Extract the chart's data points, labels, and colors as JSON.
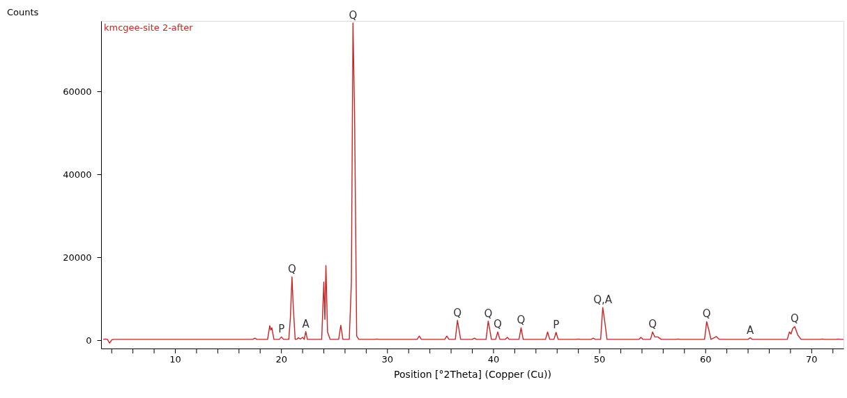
{
  "chart_data": {
    "type": "line",
    "xlabel": "Position [°2Theta] (Copper (Cu))",
    "ylabel": "Counts",
    "xlim": [
      3,
      73
    ],
    "ylim": [
      -2000,
      77000
    ],
    "xticks": [
      {
        "value": 4,
        "label": null
      },
      {
        "value": 6,
        "label": null
      },
      {
        "value": 8,
        "label": null
      },
      10,
      {
        "value": 12,
        "label": null
      },
      {
        "value": 14,
        "label": null
      },
      {
        "value": 16,
        "label": null
      },
      {
        "value": 18,
        "label": null
      },
      20,
      {
        "value": 22,
        "label": null
      },
      {
        "value": 24,
        "label": null
      },
      {
        "value": 26,
        "label": null
      },
      {
        "value": 28,
        "label": null
      },
      30,
      {
        "value": 32,
        "label": null
      },
      {
        "value": 34,
        "label": null
      },
      {
        "value": 36,
        "label": null
      },
      {
        "value": 38,
        "label": null
      },
      40,
      {
        "value": 42,
        "label": null
      },
      {
        "value": 44,
        "label": null
      },
      {
        "value": 46,
        "label": null
      },
      {
        "value": 48,
        "label": null
      },
      50,
      {
        "value": 52,
        "label": null
      },
      {
        "value": 54,
        "label": null
      },
      {
        "value": 56,
        "label": null
      },
      {
        "value": 58,
        "label": null
      },
      60,
      {
        "value": 62,
        "label": null
      },
      {
        "value": 64,
        "label": null
      },
      {
        "value": 66,
        "label": null
      },
      {
        "value": 68,
        "label": null
      },
      70,
      {
        "value": 72,
        "label": null
      }
    ],
    "yticks": [
      0,
      20000,
      40000,
      60000
    ],
    "grid": false,
    "marker": "none",
    "line_style": "solid",
    "series": [
      {
        "name": "kmcgee-site 2-after",
        "color": "#cc2222",
        "x": [
          3.2,
          3.4,
          3.6,
          3.8,
          4.0,
          4.2,
          4.5,
          17.3,
          17.5,
          17.7,
          18.7,
          18.9,
          19.0,
          19.1,
          19.3,
          19.8,
          20.0,
          20.2,
          20.7,
          20.85,
          21.0,
          21.1,
          21.3,
          21.5,
          21.6,
          21.8,
          22.0,
          22.15,
          22.3,
          22.45,
          22.6,
          23.8,
          24.0,
          24.1,
          24.2,
          24.35,
          24.6,
          25.4,
          25.6,
          25.8,
          26.4,
          26.6,
          26.75,
          26.9,
          27.1,
          27.3,
          28.8,
          29.0,
          29.2,
          32.8,
          33.0,
          33.2,
          35.4,
          35.6,
          35.8,
          36.4,
          36.6,
          36.75,
          36.9,
          38.0,
          38.2,
          38.4,
          39.3,
          39.5,
          39.65,
          39.8,
          40.2,
          40.4,
          40.6,
          41.1,
          41.3,
          41.5,
          42.4,
          42.6,
          42.8,
          44.9,
          45.1,
          45.3,
          45.7,
          45.9,
          46.1,
          47.8,
          48.0,
          48.2,
          49.2,
          49.4,
          49.6,
          50.1,
          50.3,
          50.5,
          50.7,
          53.7,
          53.9,
          54.1,
          54.8,
          55.0,
          55.2,
          55.5,
          55.8,
          57.2,
          57.4,
          57.6,
          59.9,
          60.1,
          60.3,
          60.5,
          60.8,
          61.0,
          61.3,
          64.0,
          64.2,
          64.4,
          67.7,
          67.9,
          68.05,
          68.2,
          68.4,
          68.7,
          69.0,
          70.8,
          71.0,
          71.2,
          72.3,
          72.5,
          72.7,
          73.0
        ],
        "values": [
          200,
          300,
          200,
          -700,
          100,
          200,
          200,
          200,
          500,
          200,
          200,
          3500,
          2500,
          3000,
          200,
          200,
          800,
          200,
          200,
          5500,
          15300,
          9000,
          200,
          300,
          600,
          300,
          700,
          200,
          2100,
          200,
          200,
          200,
          14000,
          5000,
          18000,
          2000,
          200,
          200,
          3600,
          200,
          200,
          14000,
          76500,
          54500,
          1000,
          200,
          200,
          300,
          200,
          200,
          1000,
          200,
          200,
          1000,
          200,
          200,
          4800,
          2500,
          200,
          200,
          500,
          200,
          200,
          4600,
          2500,
          200,
          200,
          2000,
          200,
          200,
          700,
          200,
          200,
          3000,
          200,
          200,
          2000,
          200,
          200,
          1900,
          200,
          200,
          300,
          200,
          200,
          500,
          200,
          200,
          7900,
          4300,
          200,
          200,
          700,
          200,
          200,
          2000,
          800,
          800,
          200,
          200,
          300,
          200,
          200,
          4500,
          2500,
          200,
          600,
          900,
          200,
          200,
          600,
          200,
          200,
          2000,
          1500,
          2800,
          3300,
          1200,
          200,
          200,
          300,
          200,
          200,
          300,
          200,
          200
        ]
      }
    ],
    "annotations": [
      {
        "text": "P",
        "x": 20.0,
        "y": 800
      },
      {
        "text": "Q",
        "x": 21.0,
        "y": 15300
      },
      {
        "text": "A",
        "x": 22.3,
        "y": 2100
      },
      {
        "text": "Q",
        "x": 26.75,
        "y": 76500
      },
      {
        "text": "Q",
        "x": 36.6,
        "y": 4800
      },
      {
        "text": "Q",
        "x": 39.5,
        "y": 4600
      },
      {
        "text": "Q",
        "x": 40.4,
        "y": 2000
      },
      {
        "text": "Q",
        "x": 42.6,
        "y": 3000
      },
      {
        "text": "P",
        "x": 45.9,
        "y": 1900
      },
      {
        "text": "Q,A",
        "x": 50.3,
        "y": 7900
      },
      {
        "text": "Q",
        "x": 55.0,
        "y": 2000
      },
      {
        "text": "Q",
        "x": 60.1,
        "y": 4500
      },
      {
        "text": "A",
        "x": 64.2,
        "y": 600
      },
      {
        "text": "Q",
        "x": 68.4,
        "y": 3300
      }
    ]
  }
}
